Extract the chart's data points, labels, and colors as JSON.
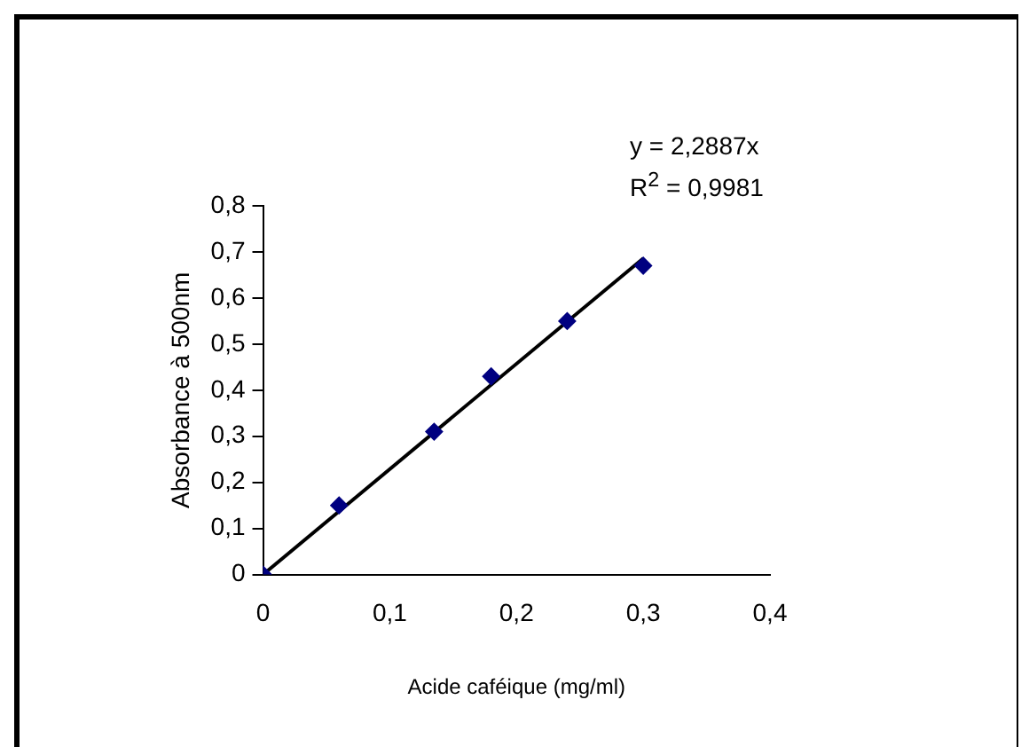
{
  "chart_data": {
    "type": "scatter",
    "xlabel": "Acide caféique (mg/ml)",
    "ylabel": "Absorbance à 500nm",
    "annotations": [
      "y = 2,2887x",
      "R$^{2}$ = 0,9981"
    ],
    "series": [
      {
        "color": "#000080",
        "marker": "diamond",
        "x": [
          0,
          0.06,
          0.135,
          0.18,
          0.24,
          0.3
        ],
        "values": [
          0,
          0.15,
          0.31,
          0.43,
          0.55,
          0.67
        ]
      },
      {
        "type": "line",
        "color": "#000000",
        "marker": "none",
        "line_style": "solid",
        "x": [
          0,
          0.3
        ],
        "values": [
          0,
          0.686
        ]
      }
    ],
    "xlim": [
      0,
      0.4
    ],
    "ylim": [
      0,
      0.8
    ],
    "xticks": [
      0,
      {
        "value": 0.1,
        "label": "0,1"
      },
      {
        "value": 0.2,
        "label": "0,2"
      },
      {
        "value": 0.3,
        "label": "0,3"
      },
      {
        "value": 0.4,
        "label": "0,4"
      }
    ],
    "yticks": [
      0,
      {
        "value": 0.1,
        "label": "0,1"
      },
      {
        "value": 0.2,
        "label": "0,2"
      },
      {
        "value": 0.3,
        "label": "0,3"
      },
      {
        "value": 0.4,
        "label": "0,4"
      },
      {
        "value": 0.5,
        "label": "0,5"
      },
      {
        "value": 0.6,
        "label": "0,6"
      },
      {
        "value": 0.7,
        "label": "0,7"
      },
      {
        "value": 0.8,
        "label": "0,8"
      }
    ],
    "grid": false,
    "legend": false
  }
}
